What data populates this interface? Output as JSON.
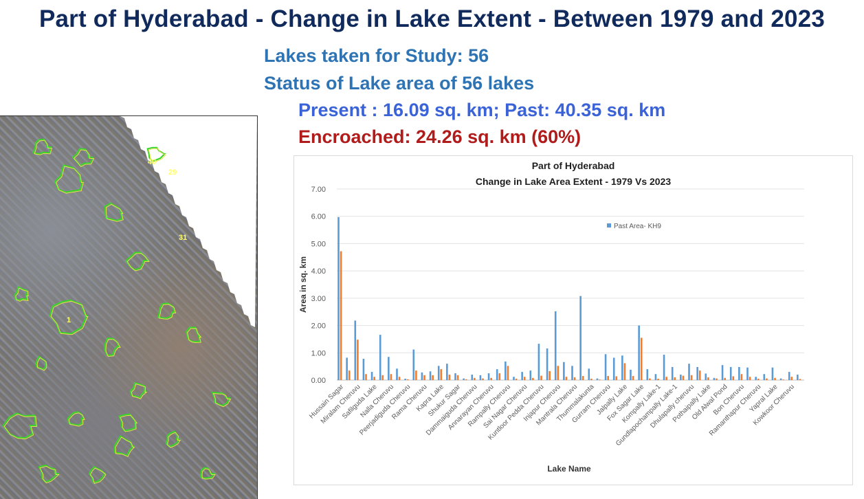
{
  "header": {
    "title": "Part of Hyderabad - Change in Lake Extent - Between 1979 and 2023",
    "lakes_count_text": "Lakes taken for Study: 56",
    "status_text": "Status of Lake area of 56 lakes",
    "present_past_text": "Present : 16.09 sq. km; Past: 40.35 sq. km",
    "encroached_text": "Encroached: 24.26 sq. km (60%)"
  },
  "colors": {
    "past": "#5b9bd5",
    "present": "#ed7d31",
    "title": "#112a5c",
    "encroached": "#b01c1c"
  },
  "map": {
    "labels": [
      "1",
      "29",
      "40",
      "31"
    ]
  },
  "chart_data": {
    "type": "bar",
    "title": "Part of Hyderabad",
    "subtitle": "Change in Lake Area Extent  - 1979 Vs 2023",
    "xlabel": "Lake Name",
    "ylabel": "Area in sq. km",
    "ylim": [
      0,
      7
    ],
    "yticks": [
      "0.00",
      "1.00",
      "2.00",
      "3.00",
      "4.00",
      "5.00",
      "6.00",
      "7.00"
    ],
    "grid": true,
    "legend_position": "top-center",
    "legend_label": "Past Area- KH9",
    "category_count": 56,
    "x_tick_labels": [
      "Hussain Sagar",
      "Miralam Cheruvu",
      "Safilguda Lake",
      "Nalla Cheruvu",
      "Peerjadiguda Cheruvu",
      "Rama Cheruvu",
      "Kapra Lake",
      "Shukur Sagar",
      "Dammaiguda Cheruvu",
      "Annarayan Cheruvu",
      "Rampally Cheruvu",
      "Sai Nagar Cheruvu",
      "Kuntloor Pedda Cheruvu",
      "Injapur Cheruvu",
      "Mantrala Cheruvu",
      "Thummalakunta",
      "Gurram Cheruvu",
      "Jalpally Lake",
      "Fox Sagar Lake",
      "Kompally Lake-1",
      "Gundlapochampally Lake-1",
      "Dhulapally cheruvu",
      "Pothaipally Lake",
      "Old Alwal Pond",
      "Bon Cheruvu",
      "Ramanthapur Cheruvu",
      "Yapral Lake",
      "Kowkoor Cheruvu"
    ],
    "series": [
      {
        "name": "Past Area- KH9",
        "values": [
          5.97,
          0.82,
          2.18,
          0.78,
          0.3,
          1.66,
          0.85,
          0.42,
          0.05,
          1.12,
          0.28,
          0.32,
          0.52,
          0.6,
          0.25,
          0.06,
          0.2,
          0.18,
          0.25,
          0.4,
          0.68,
          0.12,
          0.3,
          0.35,
          1.33,
          1.16,
          2.52,
          0.66,
          0.52,
          3.08,
          0.42,
          0.06,
          0.95,
          0.82,
          0.9,
          0.38,
          2.0,
          0.4,
          0.22,
          0.93,
          0.48,
          0.2,
          0.6,
          0.48,
          0.24,
          0.08,
          0.55,
          0.48,
          0.48,
          0.46,
          0.12,
          0.22,
          0.46,
          0.06,
          0.3,
          0.2
        ]
      },
      {
        "name": "",
        "values": [
          4.72,
          0.35,
          1.48,
          0.22,
          0.12,
          0.18,
          0.22,
          0.12,
          0.03,
          0.35,
          0.18,
          0.18,
          0.4,
          0.2,
          0.18,
          0.03,
          0.08,
          0.06,
          0.08,
          0.25,
          0.52,
          0.05,
          0.12,
          0.08,
          0.16,
          0.33,
          0.52,
          0.12,
          0.1,
          0.15,
          0.05,
          0.02,
          0.15,
          0.14,
          0.62,
          0.15,
          1.55,
          0.06,
          0.05,
          0.12,
          0.1,
          0.16,
          0.18,
          0.35,
          0.1,
          0.06,
          0.08,
          0.14,
          0.22,
          0.12,
          0.05,
          0.06,
          0.08,
          0.02,
          0.12,
          0.04
        ]
      }
    ]
  }
}
